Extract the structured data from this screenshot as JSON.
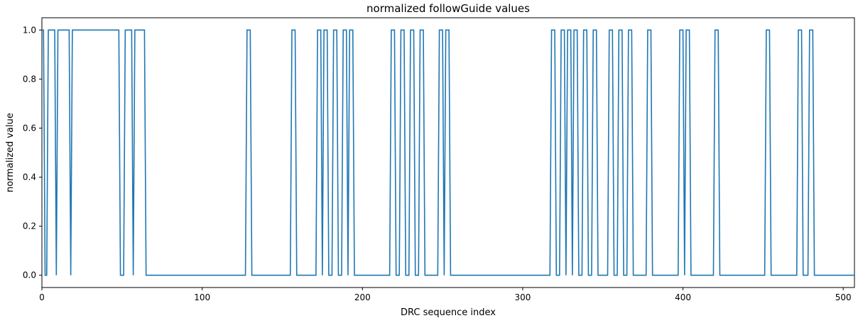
{
  "chart_data": {
    "type": "line",
    "title": "normalized followGuide values",
    "xlabel": "DRC sequence index",
    "ylabel": "normalized value",
    "xlim": [
      0,
      507
    ],
    "ylim": [
      -0.05,
      1.05
    ],
    "grid": false,
    "series_color": "#1f77b4",
    "x_ticks": [
      0,
      100,
      200,
      300,
      400,
      500
    ],
    "y_ticks": [
      0.0,
      0.2,
      0.4,
      0.6,
      0.8,
      1.0
    ],
    "x_tick_labels": [
      "0",
      "100",
      "200",
      "300",
      "400",
      "500"
    ],
    "y_tick_labels": [
      "0.0",
      "0.2",
      "0.4",
      "0.6",
      "0.8",
      "1.0"
    ],
    "series": [
      {
        "x_range": [
          0,
          507
        ],
        "one_indices": [
          0,
          1,
          4,
          5,
          6,
          7,
          8,
          10,
          11,
          12,
          13,
          14,
          15,
          16,
          17,
          19,
          20,
          21,
          22,
          23,
          24,
          25,
          26,
          27,
          28,
          29,
          30,
          31,
          32,
          33,
          34,
          35,
          36,
          37,
          38,
          39,
          40,
          41,
          42,
          43,
          44,
          45,
          46,
          47,
          48,
          52,
          53,
          54,
          55,
          56,
          58,
          59,
          60,
          61,
          62,
          63,
          64,
          128,
          129,
          130,
          156,
          157,
          158,
          172,
          173,
          174,
          176,
          177,
          178,
          182,
          183,
          184,
          188,
          189,
          190,
          192,
          193,
          194,
          218,
          219,
          220,
          224,
          225,
          226,
          230,
          231,
          232,
          236,
          237,
          238,
          248,
          249,
          250,
          252,
          253,
          254,
          318,
          319,
          320,
          324,
          325,
          326,
          328,
          329,
          330,
          332,
          333,
          334,
          338,
          339,
          340,
          344,
          345,
          346,
          354,
          355,
          356,
          360,
          361,
          362,
          366,
          367,
          368,
          378,
          379,
          380,
          398,
          399,
          400,
          402,
          403,
          404,
          420,
          421,
          422,
          452,
          453,
          454,
          472,
          473,
          474,
          479,
          480,
          481
        ]
      }
    ]
  }
}
